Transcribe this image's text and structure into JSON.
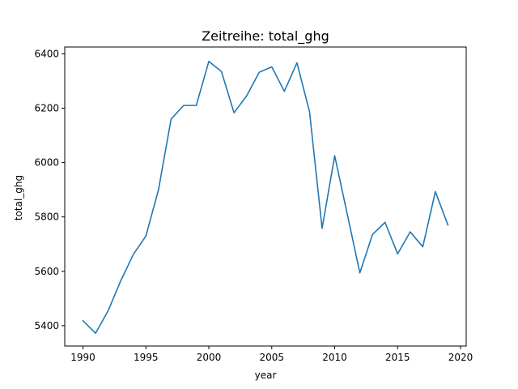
{
  "chart_data": {
    "type": "line",
    "title": "Zeitreihe: total_ghg",
    "xlabel": "year",
    "ylabel": "total_ghg",
    "xlim": [
      1988.55,
      2020.45
    ],
    "ylim": [
      5325,
      6425
    ],
    "x_ticks": [
      1990,
      1995,
      2000,
      2005,
      2010,
      2015,
      2020
    ],
    "y_ticks": [
      5400,
      5600,
      5800,
      6000,
      6200,
      6400
    ],
    "grid": false,
    "series": [
      {
        "color": "#1f77b4",
        "x": [
          1990,
          1991,
          1992,
          1993,
          1994,
          1995,
          1996,
          1997,
          1998,
          1999,
          2000,
          2001,
          2002,
          2003,
          2004,
          2005,
          2006,
          2007,
          2008,
          2009,
          2010,
          2011,
          2012,
          2013,
          2014,
          2015,
          2016,
          2017,
          2018,
          2019
        ],
        "y": [
          5418,
          5372,
          5455,
          5565,
          5662,
          5730,
          5900,
          6160,
          6210,
          6210,
          6372,
          6335,
          6183,
          6245,
          6332,
          6352,
          6262,
          6367,
          6187,
          5758,
          6025,
          5810,
          5594,
          5735,
          5780,
          5664,
          5745,
          5690,
          5893,
          5770
        ]
      }
    ]
  }
}
